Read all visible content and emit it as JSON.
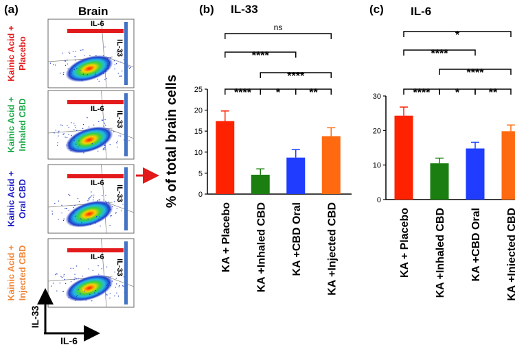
{
  "panel_a": {
    "label": "(a)",
    "title": "Brain",
    "rows": [
      {
        "line1": "Kainic Acid +",
        "line2": "Placebo",
        "color": "#e31a1c"
      },
      {
        "line1": "Kainic Acid +",
        "line2": "Inhaled CBD",
        "color": "#1faa4b"
      },
      {
        "line1": "Kainic Acid +",
        "line2": "Oral CBD",
        "color": "#1d1dc4"
      },
      {
        "line1": "Kainic Acid +",
        "line2": "Injected CBD",
        "color": "#f0883a"
      }
    ],
    "gate_labels": {
      "x": "IL-6",
      "y": "IL-33"
    },
    "axis_labels": {
      "x": "IL-6",
      "y": "IL-33"
    }
  },
  "chart_data": [
    {
      "type": "bar",
      "panel": "(b)",
      "title": "IL-33",
      "ylabel": "% of total brain cells",
      "xlabel": "",
      "ylim": [
        0,
        25
      ],
      "yticks": [
        0,
        5,
        10,
        15,
        20,
        25
      ],
      "grid": false,
      "categories": [
        "KA + Placebo",
        "KA +Inhaled CBD",
        "KA +CBD Oral",
        "KA +Injected CBD"
      ],
      "values": [
        17.4,
        4.6,
        8.7,
        13.8
      ],
      "errors": [
        2.4,
        1.4,
        1.9,
        2.0
      ],
      "colors": [
        "#ff2200",
        "#1a7f10",
        "#1f3cff",
        "#ff6a10"
      ],
      "significance": [
        {
          "from": 0,
          "to": 1,
          "label": "****"
        },
        {
          "from": 1,
          "to": 2,
          "label": "*"
        },
        {
          "from": 2,
          "to": 3,
          "label": "**"
        },
        {
          "from": 1,
          "to": 3,
          "label": "****"
        },
        {
          "from": 0,
          "to": 2,
          "label": "****"
        },
        {
          "from": 0,
          "to": 3,
          "label": "ns"
        }
      ]
    },
    {
      "type": "bar",
      "panel": "(c)",
      "title": "IL-6",
      "ylabel": "",
      "xlabel": "",
      "ylim": [
        0,
        30
      ],
      "yticks": [
        0,
        10,
        20,
        30
      ],
      "grid": false,
      "categories": [
        "KA + Placebo",
        "KA +Inhaled CBD",
        "KA +CBD Oral",
        "KA +Injected CBD"
      ],
      "values": [
        24.3,
        10.5,
        14.8,
        19.8
      ],
      "errors": [
        2.5,
        1.5,
        1.8,
        1.8
      ],
      "colors": [
        "#ff2200",
        "#1a7f10",
        "#1f3cff",
        "#ff6a10"
      ],
      "significance": [
        {
          "from": 0,
          "to": 1,
          "label": "****"
        },
        {
          "from": 1,
          "to": 2,
          "label": "*"
        },
        {
          "from": 2,
          "to": 3,
          "label": "**"
        },
        {
          "from": 1,
          "to": 3,
          "label": "****"
        },
        {
          "from": 0,
          "to": 2,
          "label": "****"
        },
        {
          "from": 0,
          "to": 3,
          "label": "*"
        }
      ]
    }
  ]
}
